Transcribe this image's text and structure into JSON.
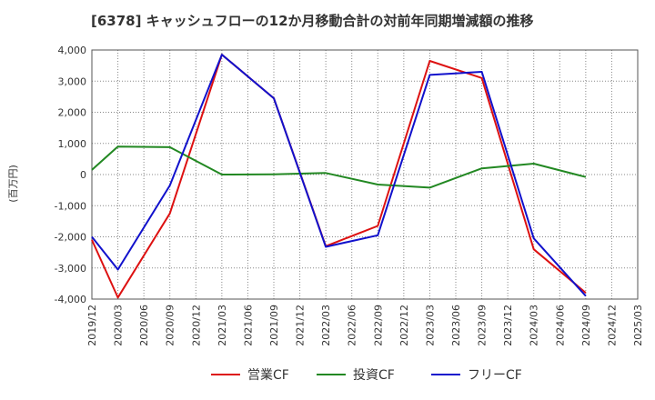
{
  "chart_data": {
    "type": "line",
    "title": "[6378]  キャッシュフローの12か月移動合計の対前年同期増減額の推移",
    "ylabel": "(百万円)",
    "xlabel": "",
    "ylim": [
      -4000,
      4000
    ],
    "yticks": [
      4000,
      3000,
      2000,
      1000,
      0,
      -1000,
      -2000,
      -3000,
      -4000
    ],
    "ytick_labels": [
      "4,000",
      "3,000",
      "2,000",
      "1,000",
      "0",
      "-1,000",
      "-2,000",
      "-3,000",
      "-4,000"
    ],
    "categories": [
      "2019/12",
      "2020/03",
      "2020/06",
      "2020/09",
      "2020/12",
      "2021/03",
      "2021/06",
      "2021/09",
      "2021/12",
      "2022/03",
      "2022/06",
      "2022/09",
      "2022/12",
      "2023/03",
      "2023/06",
      "2023/09",
      "2023/12",
      "2024/03",
      "2024/06",
      "2024/09",
      "2024/12",
      "2025/03"
    ],
    "grid": true,
    "legend_position": "bottom",
    "series": [
      {
        "name": "営業CF",
        "color": "#dd1111",
        "values": [
          -2100,
          -3950,
          null,
          -1250,
          null,
          3850,
          null,
          2450,
          null,
          -2300,
          null,
          -1650,
          null,
          3650,
          null,
          3100,
          null,
          -2400,
          null,
          -3800,
          null,
          null
        ]
      },
      {
        "name": "投資CF",
        "color": "#228822",
        "values": [
          150,
          900,
          null,
          880,
          null,
          0,
          null,
          10,
          null,
          50,
          null,
          -320,
          null,
          -420,
          null,
          200,
          null,
          350,
          null,
          -80,
          null,
          null
        ]
      },
      {
        "name": "フリーCF",
        "color": "#1111cc",
        "values": [
          -2000,
          -3050,
          null,
          -350,
          null,
          3850,
          null,
          2450,
          null,
          -2320,
          null,
          -1950,
          null,
          3200,
          null,
          3300,
          null,
          -2050,
          null,
          -3900,
          null,
          null
        ]
      }
    ]
  }
}
